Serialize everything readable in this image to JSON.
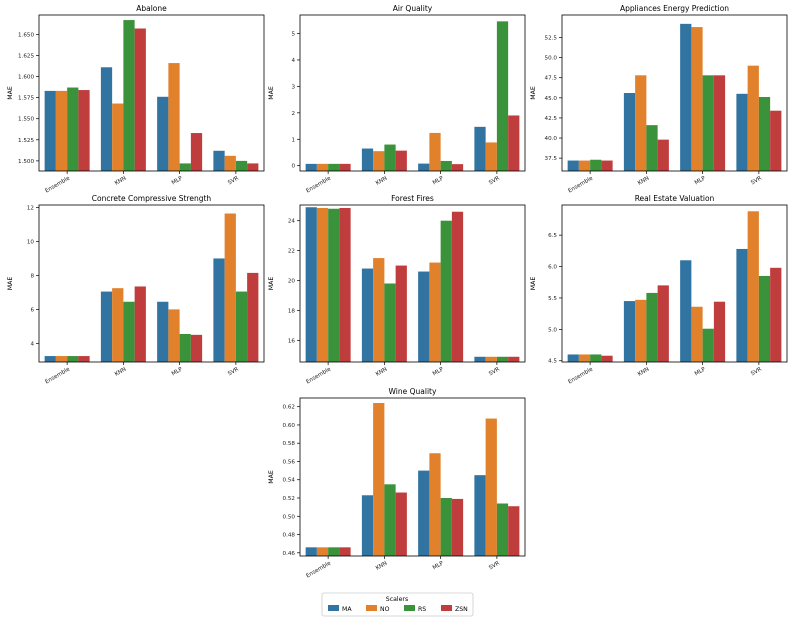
{
  "colors": {
    "MA": "#3274a1",
    "NO": "#e1812c",
    "RS": "#3a923a",
    "ZSN": "#c03d3e"
  },
  "legend": {
    "title": "Scalers",
    "entries": [
      "MA",
      "NO",
      "RS",
      "ZSN"
    ]
  },
  "chart_data": [
    {
      "type": "bar",
      "title": "Abalone",
      "xlabel": "",
      "ylabel": "MAE",
      "categories": [
        "Ensemble",
        "KNN",
        "MLP",
        "SVR"
      ],
      "ylim": [
        1.488,
        1.673
      ],
      "ticks": [
        1.5,
        1.525,
        1.55,
        1.575,
        1.6,
        1.625,
        1.65
      ],
      "tick_labels": [
        "1.500",
        "1.525",
        "1.550",
        "1.575",
        "1.600",
        "1.625",
        "1.650"
      ],
      "series": [
        {
          "name": "MA",
          "values": [
            1.583,
            1.611,
            1.576,
            1.512
          ]
        },
        {
          "name": "NO",
          "values": [
            1.583,
            1.568,
            1.616,
            1.506
          ]
        },
        {
          "name": "RS",
          "values": [
            1.587,
            1.667,
            1.497,
            1.5
          ]
        },
        {
          "name": "ZSN",
          "values": [
            1.584,
            1.657,
            1.533,
            1.497
          ]
        }
      ]
    },
    {
      "type": "bar",
      "title": "Air Quality",
      "xlabel": "",
      "ylabel": "MAE",
      "categories": [
        "Ensemble",
        "KNN",
        "MLP",
        "SVR"
      ],
      "ylim": [
        -0.2,
        5.7
      ],
      "ticks": [
        0,
        1,
        2,
        3,
        4,
        5
      ],
      "tick_labels": [
        "0",
        "1",
        "2",
        "3",
        "4",
        "5"
      ],
      "series": [
        {
          "name": "MA",
          "values": [
            0.07,
            0.65,
            0.08,
            1.47
          ]
        },
        {
          "name": "NO",
          "values": [
            0.07,
            0.55,
            1.24,
            0.88
          ]
        },
        {
          "name": "RS",
          "values": [
            0.07,
            0.8,
            0.18,
            5.46
          ]
        },
        {
          "name": "ZSN",
          "values": [
            0.07,
            0.57,
            0.06,
            1.9
          ]
        }
      ]
    },
    {
      "type": "bar",
      "title": "Appliances Energy Prediction",
      "xlabel": "",
      "ylabel": "MAE",
      "categories": [
        "Ensemble",
        "KNN",
        "MLP",
        "SVR"
      ],
      "ylim": [
        35.9,
        55.3
      ],
      "ticks": [
        37.5,
        40.0,
        42.5,
        45.0,
        47.5,
        50.0,
        52.5
      ],
      "tick_labels": [
        "37.5",
        "40.0",
        "42.5",
        "45.0",
        "47.5",
        "50.0",
        "52.5"
      ],
      "series": [
        {
          "name": "MA",
          "values": [
            37.2,
            45.6,
            54.2,
            45.5
          ]
        },
        {
          "name": "NO",
          "values": [
            37.2,
            47.8,
            53.8,
            49.0
          ]
        },
        {
          "name": "RS",
          "values": [
            37.3,
            41.6,
            47.8,
            45.1
          ]
        },
        {
          "name": "ZSN",
          "values": [
            37.2,
            39.8,
            47.8,
            43.4
          ]
        }
      ]
    },
    {
      "type": "bar",
      "title": "Concrete Compressive Strength",
      "xlabel": "",
      "ylabel": "MAE",
      "categories": [
        "Ensemble",
        "KNN",
        "MLP",
        "SVR"
      ],
      "ylim": [
        2.9,
        12.15
      ],
      "ticks": [
        4,
        6,
        8,
        10,
        12
      ],
      "tick_labels": [
        "4",
        "6",
        "8",
        "10",
        "12"
      ],
      "series": [
        {
          "name": "MA",
          "values": [
            3.25,
            7.05,
            6.45,
            9.0
          ]
        },
        {
          "name": "NO",
          "values": [
            3.25,
            7.25,
            6.0,
            11.65
          ]
        },
        {
          "name": "RS",
          "values": [
            3.25,
            6.45,
            4.55,
            7.05
          ]
        },
        {
          "name": "ZSN",
          "values": [
            3.25,
            7.35,
            4.5,
            8.15
          ]
        }
      ]
    },
    {
      "type": "bar",
      "title": "Forest Fires",
      "xlabel": "",
      "ylabel": "MAE",
      "categories": [
        "Ensemble",
        "KNN",
        "MLP",
        "SVR"
      ],
      "ylim": [
        14.55,
        25.05
      ],
      "ticks": [
        16,
        18,
        20,
        22,
        24
      ],
      "tick_labels": [
        "16",
        "18",
        "20",
        "22",
        "24"
      ],
      "series": [
        {
          "name": "MA",
          "values": [
            24.9,
            20.8,
            20.6,
            14.9
          ]
        },
        {
          "name": "NO",
          "values": [
            24.85,
            21.5,
            21.2,
            14.9
          ]
        },
        {
          "name": "RS",
          "values": [
            24.8,
            19.8,
            24.0,
            14.9
          ]
        },
        {
          "name": "ZSN",
          "values": [
            24.85,
            21.0,
            24.6,
            14.9
          ]
        }
      ]
    },
    {
      "type": "bar",
      "title": "Real Estate Valuation",
      "xlabel": "",
      "ylabel": "MAE",
      "categories": [
        "Ensemble",
        "KNN",
        "MLP",
        "SVR"
      ],
      "ylim": [
        4.48,
        6.98
      ],
      "ticks": [
        4.5,
        5.0,
        5.5,
        6.0,
        6.5
      ],
      "tick_labels": [
        "4.5",
        "5.0",
        "5.5",
        "6.0",
        "6.5"
      ],
      "series": [
        {
          "name": "MA",
          "values": [
            4.6,
            5.45,
            6.1,
            6.28
          ]
        },
        {
          "name": "NO",
          "values": [
            4.6,
            5.47,
            5.36,
            6.88
          ]
        },
        {
          "name": "RS",
          "values": [
            4.6,
            5.58,
            5.01,
            5.85
          ]
        },
        {
          "name": "ZSN",
          "values": [
            4.58,
            5.7,
            5.44,
            5.98
          ]
        }
      ]
    },
    {
      "type": "bar",
      "title": "Wine Quality",
      "xlabel": "",
      "ylabel": "MAE",
      "categories": [
        "Ensemble",
        "KNN",
        "MLP",
        "SVR"
      ],
      "ylim": [
        0.4565,
        0.6295
      ],
      "ticks": [
        0.46,
        0.48,
        0.5,
        0.52,
        0.54,
        0.56,
        0.58,
        0.6,
        0.62
      ],
      "tick_labels": [
        "0.46",
        "0.48",
        "0.50",
        "0.52",
        "0.54",
        "0.56",
        "0.58",
        "0.60",
        "0.62"
      ],
      "series": [
        {
          "name": "MA",
          "values": [
            0.466,
            0.523,
            0.55,
            0.545
          ]
        },
        {
          "name": "NO",
          "values": [
            0.466,
            0.624,
            0.569,
            0.607
          ]
        },
        {
          "name": "RS",
          "values": [
            0.466,
            0.535,
            0.52,
            0.514
          ]
        },
        {
          "name": "ZSN",
          "values": [
            0.466,
            0.526,
            0.519,
            0.511
          ]
        }
      ]
    }
  ]
}
